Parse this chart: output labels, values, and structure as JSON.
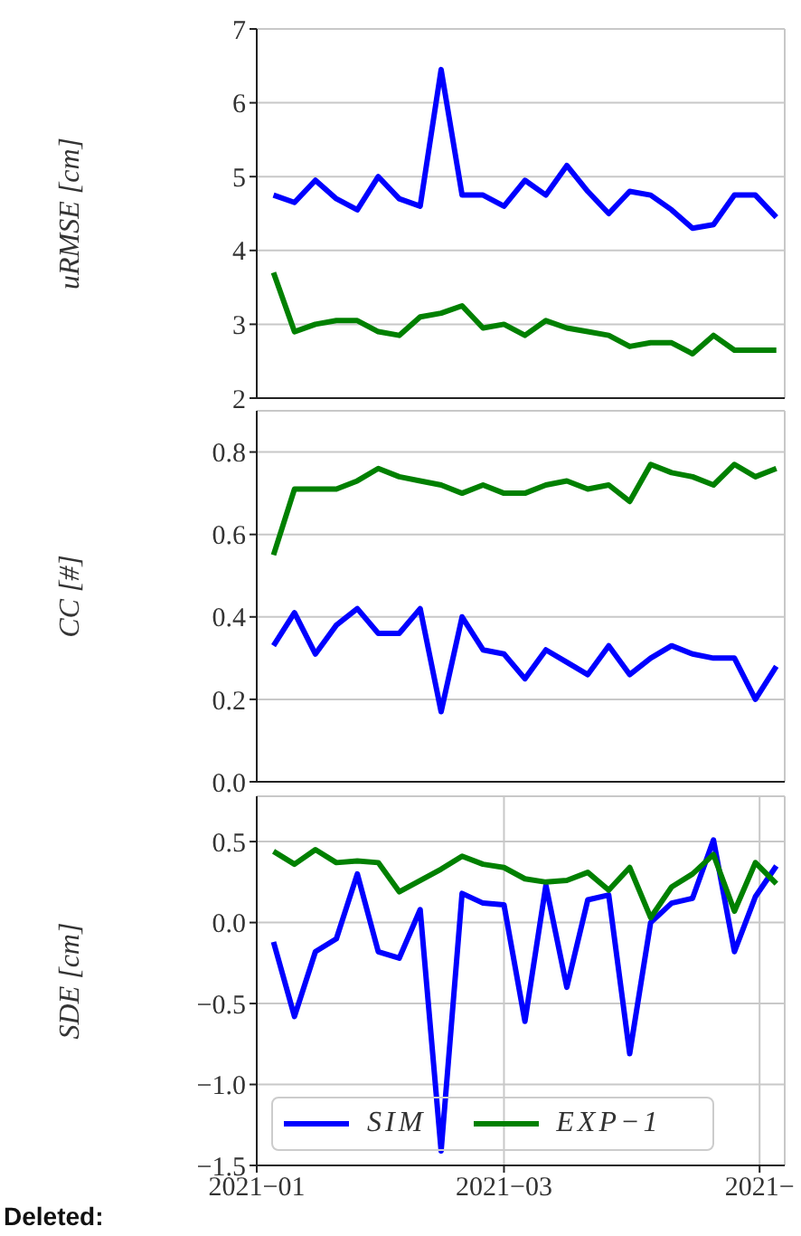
{
  "chart_data": [
    {
      "type": "line",
      "ylabel": "uRMSE [cm]",
      "x": [
        "2021-01-05",
        "2021-01-10",
        "2021-01-15",
        "2021-01-20",
        "2021-01-25",
        "2021-01-30",
        "2021-02-04",
        "2021-02-09",
        "2021-02-14",
        "2021-02-19",
        "2021-02-24",
        "2021-03-01",
        "2021-03-06",
        "2021-03-11",
        "2021-03-16",
        "2021-03-21",
        "2021-03-26",
        "2021-03-31",
        "2021-04-05",
        "2021-04-10",
        "2021-04-15",
        "2021-04-20",
        "2021-04-25",
        "2021-04-30",
        "2021-05-05"
      ],
      "xlim": [
        "2021-01-01",
        "2021-05-07"
      ],
      "xticks": [
        {
          "value": "2021-01",
          "label": null
        },
        {
          "value": "2021-03",
          "label": null
        },
        {
          "value": "2021-05",
          "label": null
        }
      ],
      "ylim": [
        2,
        7
      ],
      "yticks": [
        2,
        3,
        4,
        5,
        6,
        7
      ],
      "tick_labels": "y",
      "grid": true,
      "line_style": "solid",
      "marker": "none",
      "series": [
        {
          "color": "#0000ff",
          "values": [
            4.75,
            4.65,
            4.95,
            4.7,
            4.55,
            5.0,
            4.7,
            4.6,
            6.45,
            4.75,
            4.75,
            4.6,
            4.95,
            4.75,
            5.15,
            4.8,
            4.5,
            4.8,
            4.75,
            4.55,
            4.3,
            4.35,
            4.75,
            4.75,
            4.45
          ]
        },
        {
          "color": "#008000",
          "values": [
            3.7,
            2.9,
            3.0,
            3.05,
            3.05,
            2.9,
            2.85,
            3.1,
            3.15,
            3.25,
            2.95,
            3.0,
            2.85,
            3.05,
            2.95,
            2.9,
            2.85,
            2.7,
            2.75,
            2.75,
            2.6,
            2.85,
            2.65,
            2.65,
            2.65
          ]
        }
      ]
    },
    {
      "type": "line",
      "ylabel": "CC [#]",
      "x": [
        "2021-01-05",
        "2021-01-10",
        "2021-01-15",
        "2021-01-20",
        "2021-01-25",
        "2021-01-30",
        "2021-02-04",
        "2021-02-09",
        "2021-02-14",
        "2021-02-19",
        "2021-02-24",
        "2021-03-01",
        "2021-03-06",
        "2021-03-11",
        "2021-03-16",
        "2021-03-21",
        "2021-03-26",
        "2021-03-31",
        "2021-04-05",
        "2021-04-10",
        "2021-04-15",
        "2021-04-20",
        "2021-04-25",
        "2021-04-30",
        "2021-05-05"
      ],
      "xlim": [
        "2021-01-01",
        "2021-05-07"
      ],
      "xticks": [
        {
          "value": "2021-01",
          "label": null
        },
        {
          "value": "2021-03",
          "label": null
        },
        {
          "value": "2021-05",
          "label": null
        }
      ],
      "ylim": [
        0,
        0.9
      ],
      "yticks": [
        {
          "value": 0,
          "label": "0.0"
        },
        0.2,
        0.4,
        0.6,
        0.8
      ],
      "tick_labels": "y",
      "grid": true,
      "line_style": "solid",
      "marker": "none",
      "series": [
        {
          "color": "#0000ff",
          "values": [
            0.33,
            0.41,
            0.31,
            0.38,
            0.42,
            0.36,
            0.36,
            0.42,
            0.17,
            0.4,
            0.32,
            0.31,
            0.25,
            0.32,
            0.29,
            0.26,
            0.33,
            0.26,
            0.3,
            0.33,
            0.31,
            0.3,
            0.3,
            0.2,
            0.28
          ]
        },
        {
          "color": "#008000",
          "values": [
            0.55,
            0.71,
            0.71,
            0.71,
            0.73,
            0.76,
            0.74,
            0.73,
            0.72,
            0.7,
            0.72,
            0.7,
            0.7,
            0.72,
            0.73,
            0.71,
            0.72,
            0.68,
            0.77,
            0.75,
            0.74,
            0.72,
            0.77,
            0.74,
            0.76
          ]
        }
      ]
    },
    {
      "type": "line",
      "ylabel": "SDE [cm]",
      "annotations": [
        "Deleted:"
      ],
      "x": [
        "2021-01-05",
        "2021-01-10",
        "2021-01-15",
        "2021-01-20",
        "2021-01-25",
        "2021-01-30",
        "2021-02-04",
        "2021-02-09",
        "2021-02-14",
        "2021-02-19",
        "2021-02-24",
        "2021-03-01",
        "2021-03-06",
        "2021-03-11",
        "2021-03-16",
        "2021-03-21",
        "2021-03-26",
        "2021-03-31",
        "2021-04-05",
        "2021-04-10",
        "2021-04-15",
        "2021-04-20",
        "2021-04-25",
        "2021-04-30",
        "2021-05-05"
      ],
      "xlim": [
        "2021-01-01",
        "2021-05-07"
      ],
      "xticks": [
        {
          "value": "2021-01",
          "label": "2021−01"
        },
        {
          "value": "2021-03",
          "label": "2021−03"
        },
        {
          "value": "2021-05",
          "label": "2021−"
        }
      ],
      "ylim": [
        -1.5,
        0.78
      ],
      "yticks": [
        {
          "value": -1.5,
          "label": "−1.5"
        },
        {
          "value": -1,
          "label": "−1.0"
        },
        {
          "value": -0.5,
          "label": "−0.5"
        },
        {
          "value": 0,
          "label": "0.0"
        },
        0.5
      ],
      "grid": true,
      "legend": "bottom left",
      "line_style": "solid",
      "marker": "none",
      "series": [
        {
          "name": "SIM",
          "color": "#0000ff",
          "values": [
            -0.12,
            -0.58,
            -0.18,
            -0.1,
            0.3,
            -0.18,
            -0.22,
            0.08,
            -1.41,
            0.18,
            0.12,
            0.11,
            -0.61,
            0.23,
            -0.4,
            0.14,
            0.17,
            -0.81,
            0.0,
            0.12,
            0.15,
            0.51,
            -0.18,
            0.16,
            0.35
          ]
        },
        {
          "name": "EXP−1",
          "color": "#008000",
          "values": [
            0.44,
            0.36,
            0.45,
            0.37,
            0.38,
            0.37,
            0.19,
            0.26,
            0.33,
            0.41,
            0.36,
            0.34,
            0.27,
            0.25,
            0.26,
            0.31,
            0.2,
            0.34,
            0.03,
            0.22,
            0.3,
            0.42,
            0.07,
            0.37,
            0.24
          ]
        }
      ]
    }
  ]
}
